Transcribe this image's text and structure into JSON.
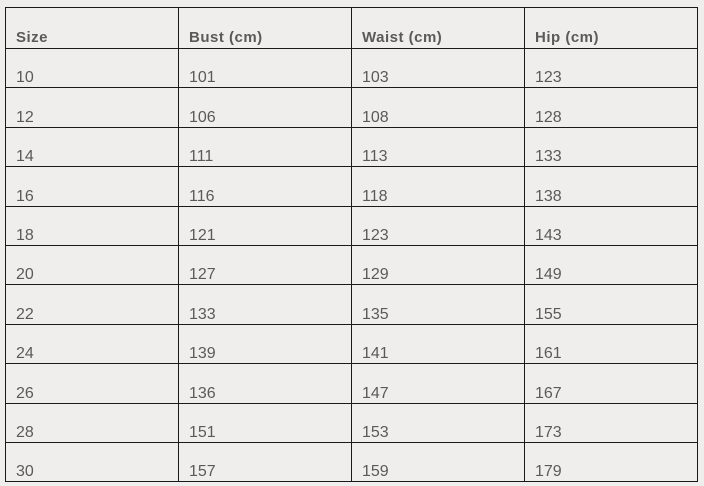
{
  "table": {
    "headers": [
      "Size",
      "Bust (cm)",
      "Waist (cm)",
      "Hip (cm)"
    ],
    "rows": [
      [
        "10",
        "101",
        "103",
        "123"
      ],
      [
        "12",
        "106",
        "108",
        "128"
      ],
      [
        "14",
        "111",
        "113",
        "133"
      ],
      [
        "16",
        "116",
        "118",
        "138"
      ],
      [
        "18",
        "121",
        "123",
        "143"
      ],
      [
        "20",
        "127",
        "129",
        "149"
      ],
      [
        "22",
        "133",
        "135",
        "155"
      ],
      [
        "24",
        "139",
        "141",
        "161"
      ],
      [
        "26",
        "136",
        "147",
        "167"
      ],
      [
        "28",
        "151",
        "153",
        "173"
      ],
      [
        "30",
        "157",
        "159",
        "179"
      ]
    ]
  }
}
